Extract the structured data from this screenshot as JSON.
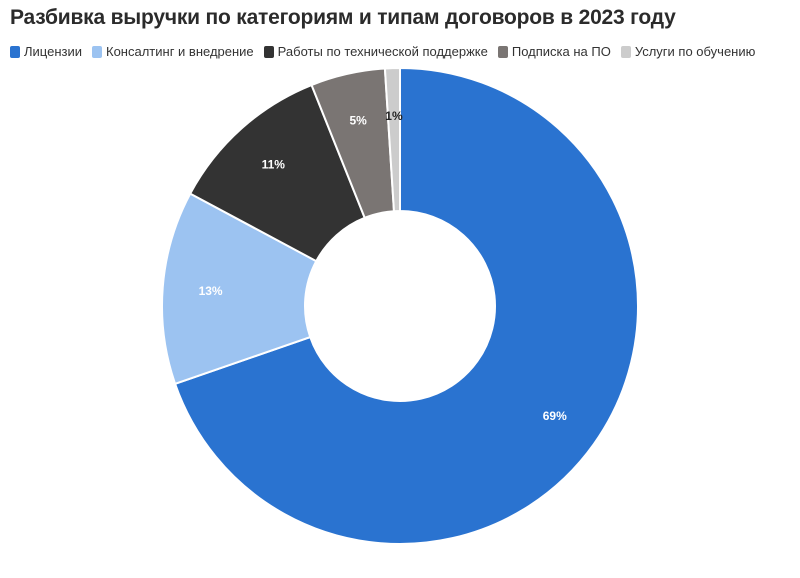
{
  "chart_data": {
    "type": "pie",
    "title": "Разбивка выручки по категориям и типам договоров в 2023 году",
    "legend_placement": "top-left",
    "categories": [
      "Лицензии",
      "Консалтинг и внедрение",
      "Работы по технической поддержке",
      "Подписка на ПО",
      "Услуги по обучению"
    ],
    "values": [
      69,
      13,
      11,
      5,
      1
    ],
    "labels": [
      "69%",
      "13%",
      "11%",
      "5%",
      "1%"
    ],
    "colors": [
      "#2a73d0",
      "#9cc3f1",
      "#333333",
      "#7a7573",
      "#cccccc"
    ],
    "label_colors": [
      "#ffffff",
      "#ffffff",
      "#ffffff",
      "#ffffff",
      "#222222"
    ],
    "hole": true
  }
}
